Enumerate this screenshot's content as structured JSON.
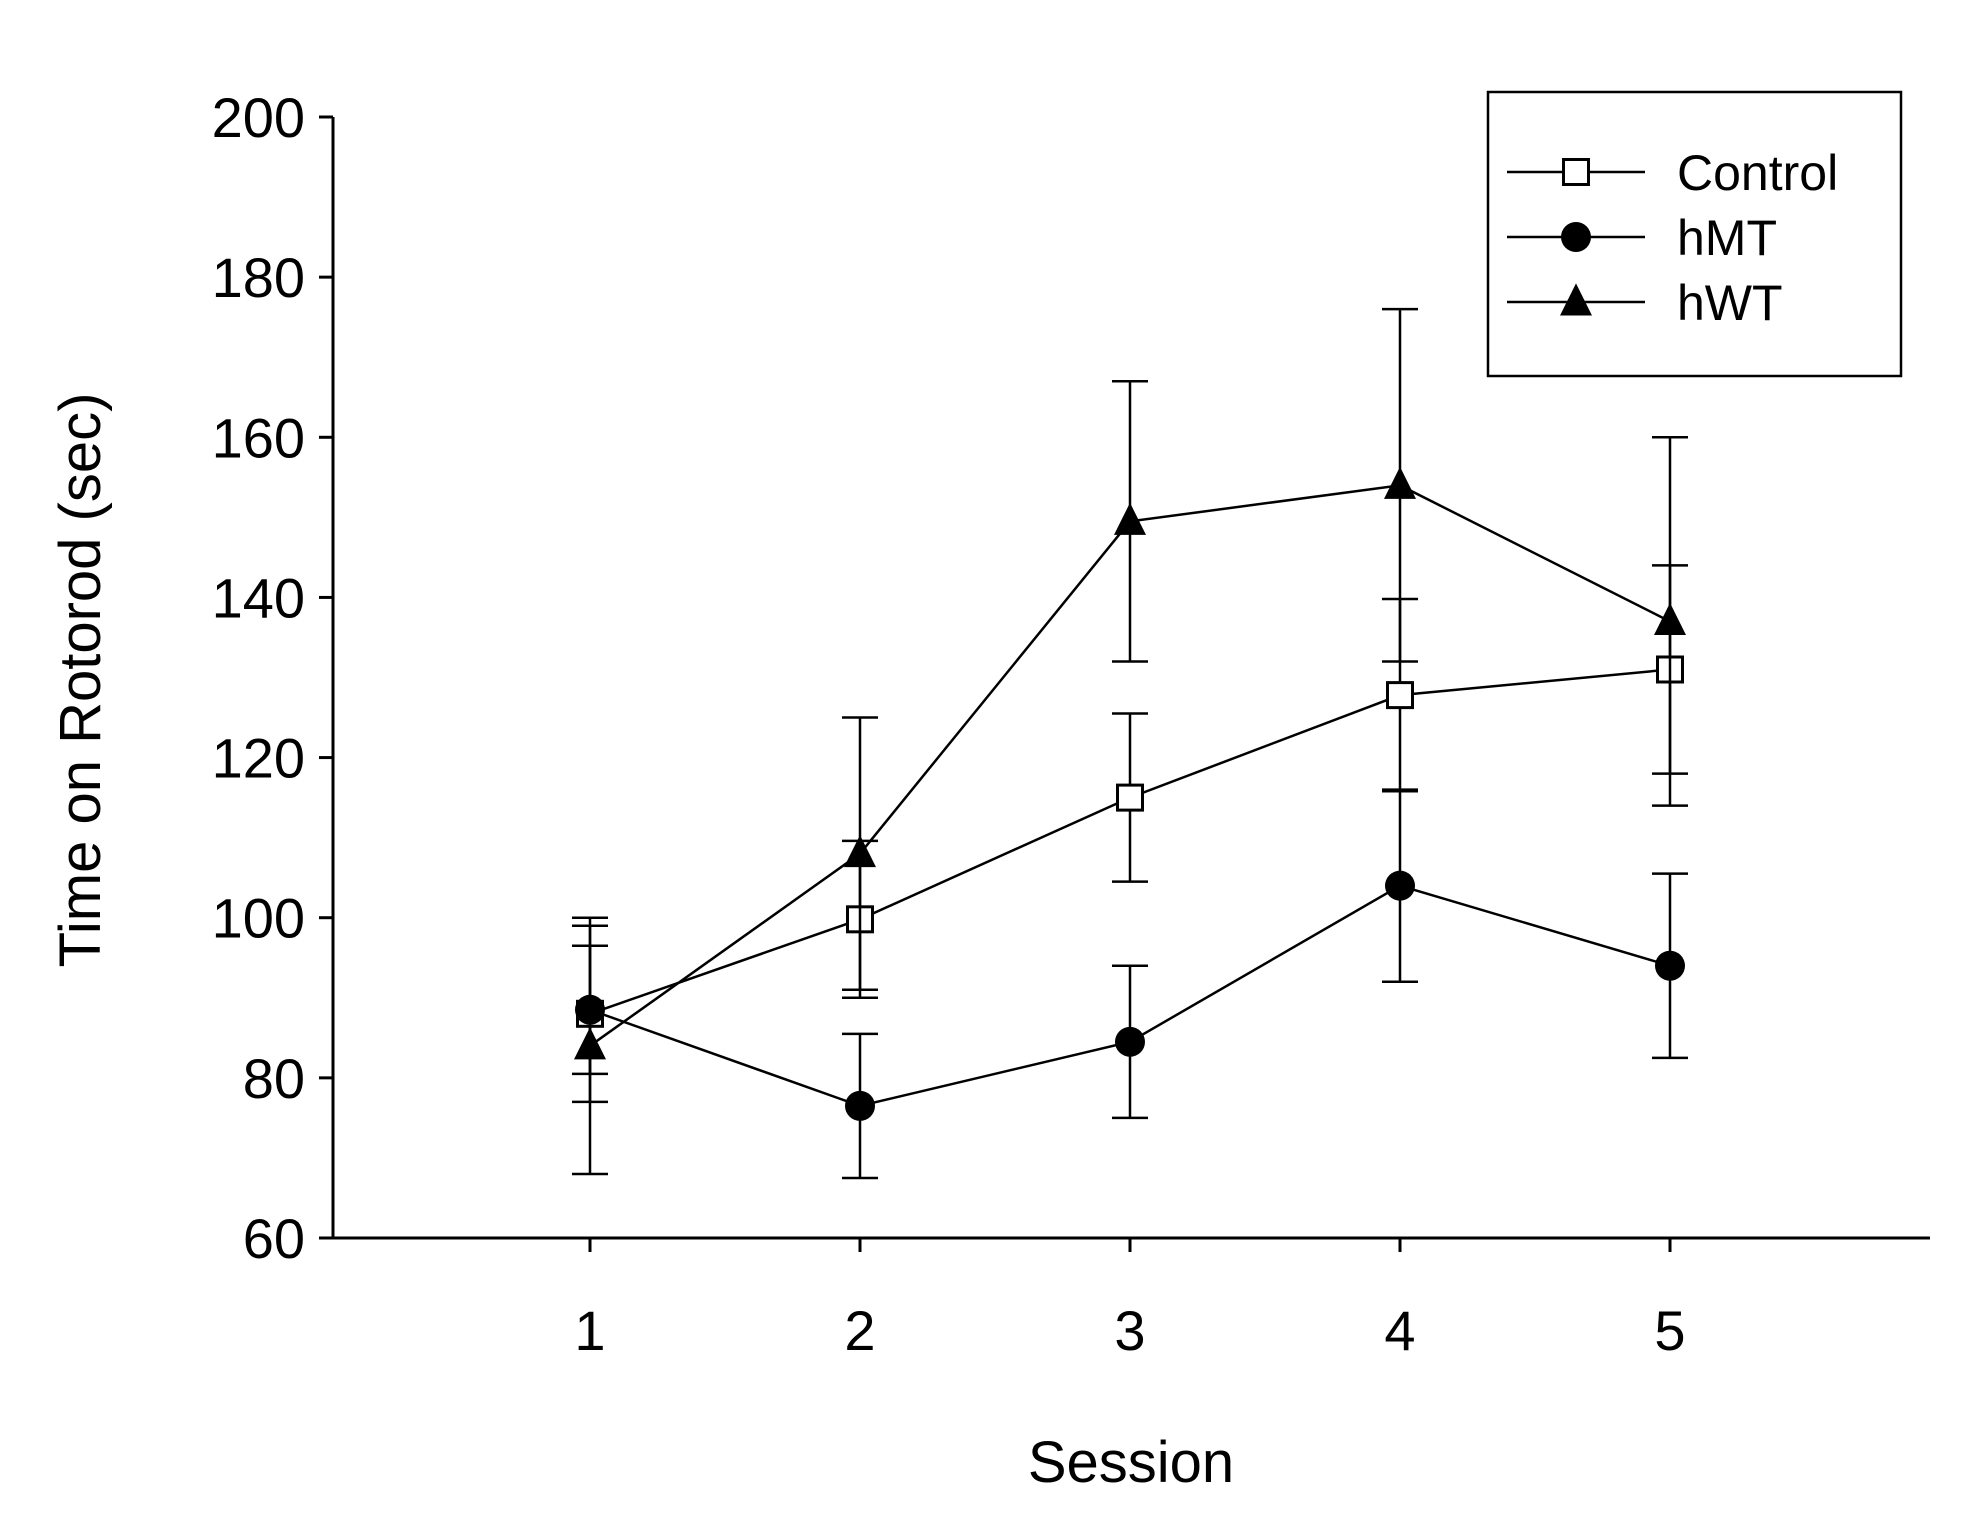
{
  "chart_data": {
    "type": "line",
    "title": "",
    "xlabel": "Session",
    "ylabel": "Time on Rotorod (sec)",
    "x": [
      1,
      2,
      3,
      4,
      5
    ],
    "xlim": [
      0,
      6
    ],
    "ylim": [
      60,
      200
    ],
    "yticks": [
      60,
      80,
      100,
      120,
      140,
      160,
      180,
      200
    ],
    "legend_position": "top-right",
    "grid": false,
    "series": [
      {
        "name": "Control",
        "marker": "open-square",
        "values": [
          88,
          99.8,
          115,
          127.8,
          131
        ],
        "error": [
          11,
          9.8,
          10.5,
          12,
          13
        ]
      },
      {
        "name": "hMT",
        "marker": "filled-circle",
        "values": [
          88.5,
          76.5,
          84.5,
          104,
          94
        ],
        "error": [
          8,
          9,
          9.5,
          12,
          11.5
        ]
      },
      {
        "name": "hWT",
        "marker": "filled-triangle",
        "values": [
          84,
          108,
          149.5,
          154,
          137
        ],
        "error": [
          16,
          17,
          17.5,
          22,
          23
        ]
      }
    ],
    "colors": {
      "line": "#000000",
      "marker_fill": "#000000",
      "open_marker_fill": "#ffffff",
      "background": "#ffffff"
    }
  }
}
